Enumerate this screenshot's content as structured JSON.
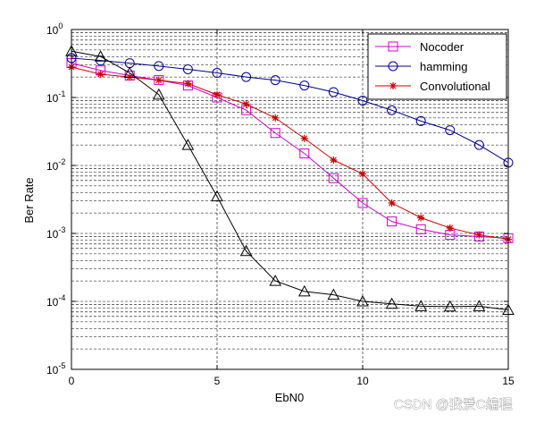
{
  "chart_data": {
    "type": "line",
    "xlabel": "EbN0",
    "ylabel": "Ber Rate",
    "xlim": [
      0,
      15
    ],
    "ylim": [
      1e-05,
      1
    ],
    "yscale": "log",
    "grid": true,
    "legend_position": "top-right",
    "x_ticks": [
      0,
      5,
      10,
      15
    ],
    "x_tick_labels": [
      "0",
      "5",
      "10",
      "15"
    ],
    "y_ticks": [
      {
        "base": "10",
        "exp": "0"
      },
      {
        "base": "10",
        "exp": "-1"
      },
      {
        "base": "10",
        "exp": "-2"
      },
      {
        "base": "10",
        "exp": "-3"
      },
      {
        "base": "10",
        "exp": "-4"
      },
      {
        "base": "10",
        "exp": "-5"
      }
    ],
    "x": [
      0,
      1,
      2,
      3,
      4,
      5,
      6,
      7,
      8,
      9,
      10,
      11,
      12,
      13,
      14,
      15
    ],
    "series": [
      {
        "name": "Nocoder",
        "color": "#cc00cc",
        "marker": "square",
        "values": [
          0.32,
          0.25,
          0.21,
          0.18,
          0.15,
          0.1,
          0.065,
          0.03,
          0.015,
          0.0065,
          0.0028,
          0.0015,
          0.00115,
          0.00095,
          0.0009,
          0.00085
        ]
      },
      {
        "name": "hamming",
        "color": "#00008b",
        "marker": "circle",
        "values": [
          0.38,
          0.35,
          0.32,
          0.29,
          0.26,
          0.23,
          0.2,
          0.18,
          0.15,
          0.12,
          0.09,
          0.065,
          0.045,
          0.033,
          0.02,
          0.011
        ]
      },
      {
        "name": "Convolutional",
        "color": "#cc0000",
        "marker": "star",
        "values": [
          0.28,
          0.22,
          0.2,
          0.18,
          0.16,
          0.11,
          0.08,
          0.05,
          0.025,
          0.012,
          0.0075,
          0.0028,
          0.0017,
          0.0012,
          0.00095,
          0.00082
        ]
      },
      {
        "name": "",
        "color": "#000000",
        "marker": "triangle",
        "values": [
          0.48,
          0.4,
          0.23,
          0.11,
          0.02,
          0.0035,
          0.00055,
          0.0002,
          0.00014,
          0.000125,
          0.0001,
          9.2e-05,
          8.5e-05,
          8.4e-05,
          8.5e-05,
          7.5e-05
        ]
      }
    ]
  },
  "watermark": "CSDN @我爱C编程"
}
